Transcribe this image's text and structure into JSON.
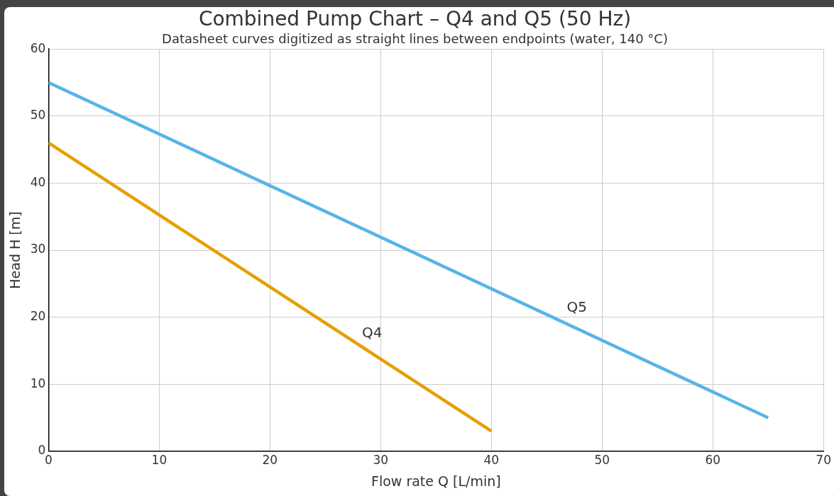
{
  "chart_data": {
    "type": "line",
    "title": "Combined Pump Chart – Q4 and Q5 (50 Hz)",
    "subtitle": "Datasheet curves digitized as straight lines between endpoints (water, 140 °C)",
    "xlabel": "Flow rate Q [L/min]",
    "ylabel": "Head H [m]",
    "series": [
      {
        "name": "Q5",
        "color": "#56b4e9",
        "x": [
          0,
          65
        ],
        "values": [
          55,
          5
        ]
      },
      {
        "name": "Q4",
        "color": "#e69f00",
        "x": [
          0,
          40
        ],
        "values": [
          46,
          3
        ]
      }
    ],
    "xlim": [
      0,
      70
    ],
    "xticks": [
      0,
      10,
      20,
      30,
      40,
      50,
      60,
      70
    ],
    "ylim": [
      0,
      60
    ],
    "yticks": [
      0,
      10,
      20,
      30,
      40,
      50,
      60
    ],
    "grid": true,
    "legend": false,
    "marker": "none",
    "line_style": "solid"
  }
}
